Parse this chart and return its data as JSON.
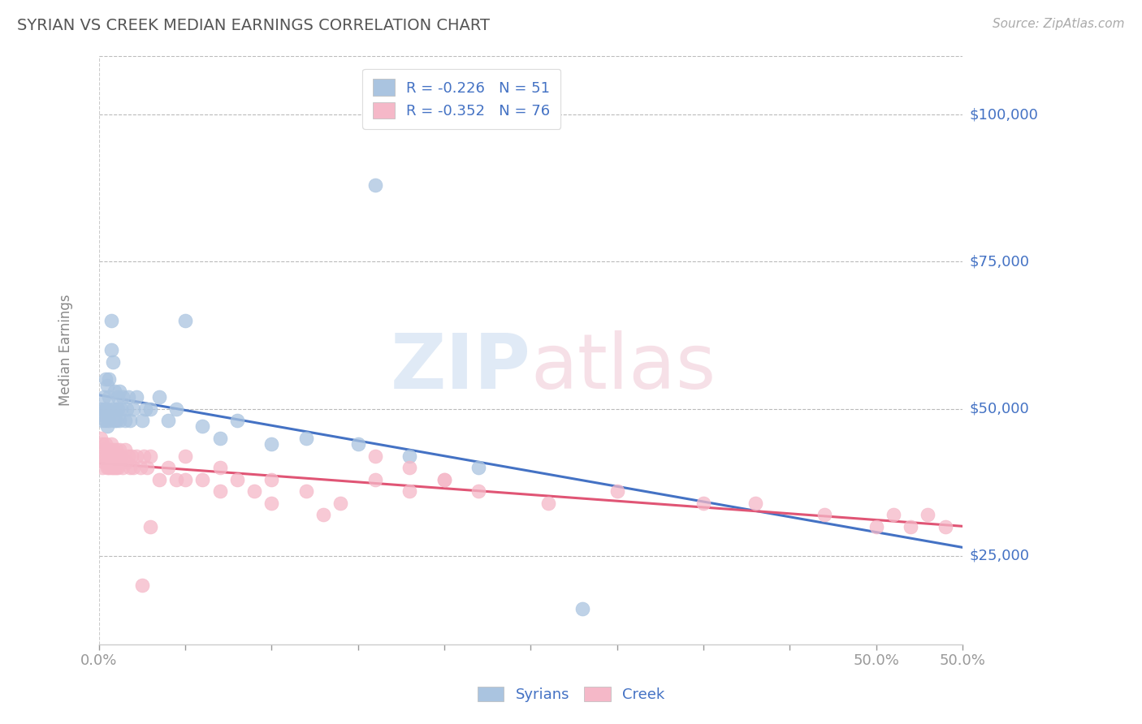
{
  "title": "SYRIAN VS CREEK MEDIAN EARNINGS CORRELATION CHART",
  "source_text": "Source: ZipAtlas.com",
  "ylabel": "Median Earnings",
  "watermark": "ZIPatlas",
  "xmin": 0.0,
  "xmax": 0.5,
  "ymin": 10000,
  "ymax": 110000,
  "yticks": [
    25000,
    50000,
    75000,
    100000
  ],
  "ytick_labels": [
    "$25,000",
    "$50,000",
    "$75,000",
    "$100,000"
  ],
  "xtick_positions": [
    0.0,
    0.05,
    0.1,
    0.15,
    0.2,
    0.25,
    0.3,
    0.35,
    0.4,
    0.45,
    0.5
  ],
  "xtick_edge_labels": {
    "0.0": "0.0%",
    "0.5": "50.0%"
  },
  "syrian_color": "#aac4e0",
  "creek_color": "#f5b8c8",
  "syrian_line_color": "#4472c4",
  "creek_line_color": "#e05575",
  "syrian_r": -0.226,
  "syrian_n": 51,
  "creek_r": -0.352,
  "creek_n": 76,
  "legend_label_syrian": "Syrians",
  "legend_label_creek": "Creek",
  "axis_color": "#4472c4",
  "title_color": "#555555",
  "grid_color": "#bbbbbb",
  "background_color": "#ffffff",
  "syrian_x": [
    0.001,
    0.002,
    0.002,
    0.003,
    0.003,
    0.004,
    0.004,
    0.004,
    0.005,
    0.005,
    0.005,
    0.006,
    0.006,
    0.006,
    0.007,
    0.007,
    0.008,
    0.008,
    0.009,
    0.009,
    0.01,
    0.01,
    0.011,
    0.011,
    0.012,
    0.012,
    0.013,
    0.014,
    0.015,
    0.016,
    0.017,
    0.018,
    0.02,
    0.022,
    0.025,
    0.027,
    0.03,
    0.035,
    0.04,
    0.045,
    0.05,
    0.06,
    0.07,
    0.08,
    0.1,
    0.12,
    0.15,
    0.18,
    0.22,
    0.28,
    0.16
  ],
  "syrian_y": [
    50000,
    49000,
    48000,
    52000,
    50000,
    55000,
    50000,
    48000,
    54000,
    50000,
    47000,
    52000,
    48000,
    55000,
    65000,
    60000,
    58000,
    50000,
    48000,
    53000,
    50000,
    48000,
    52000,
    50000,
    53000,
    48000,
    50000,
    52000,
    48000,
    50000,
    52000,
    48000,
    50000,
    52000,
    48000,
    50000,
    50000,
    52000,
    48000,
    50000,
    65000,
    47000,
    45000,
    48000,
    44000,
    45000,
    44000,
    42000,
    40000,
    16000,
    88000
  ],
  "creek_x": [
    0.001,
    0.001,
    0.002,
    0.002,
    0.003,
    0.003,
    0.004,
    0.004,
    0.005,
    0.005,
    0.005,
    0.006,
    0.006,
    0.006,
    0.007,
    0.007,
    0.007,
    0.008,
    0.008,
    0.008,
    0.009,
    0.009,
    0.01,
    0.01,
    0.01,
    0.011,
    0.011,
    0.012,
    0.012,
    0.013,
    0.014,
    0.015,
    0.016,
    0.017,
    0.018,
    0.019,
    0.02,
    0.022,
    0.024,
    0.026,
    0.028,
    0.03,
    0.035,
    0.04,
    0.045,
    0.05,
    0.06,
    0.07,
    0.08,
    0.09,
    0.1,
    0.12,
    0.14,
    0.16,
    0.18,
    0.2,
    0.22,
    0.26,
    0.3,
    0.35,
    0.38,
    0.42,
    0.45,
    0.46,
    0.47,
    0.48,
    0.49,
    0.16,
    0.18,
    0.2,
    0.03,
    0.05,
    0.07,
    0.1,
    0.13,
    0.025
  ],
  "creek_y": [
    45000,
    42000,
    44000,
    40000,
    43000,
    41000,
    44000,
    42000,
    43000,
    41000,
    40000,
    43000,
    41000,
    40000,
    44000,
    42000,
    40000,
    43000,
    41000,
    40000,
    42000,
    40000,
    43000,
    41000,
    40000,
    42000,
    40000,
    43000,
    41000,
    42000,
    40000,
    43000,
    41000,
    42000,
    40000,
    42000,
    40000,
    42000,
    40000,
    42000,
    40000,
    42000,
    38000,
    40000,
    38000,
    42000,
    38000,
    40000,
    38000,
    36000,
    38000,
    36000,
    34000,
    38000,
    36000,
    38000,
    36000,
    34000,
    36000,
    34000,
    34000,
    32000,
    30000,
    32000,
    30000,
    32000,
    30000,
    42000,
    40000,
    38000,
    30000,
    38000,
    36000,
    34000,
    32000,
    20000
  ]
}
